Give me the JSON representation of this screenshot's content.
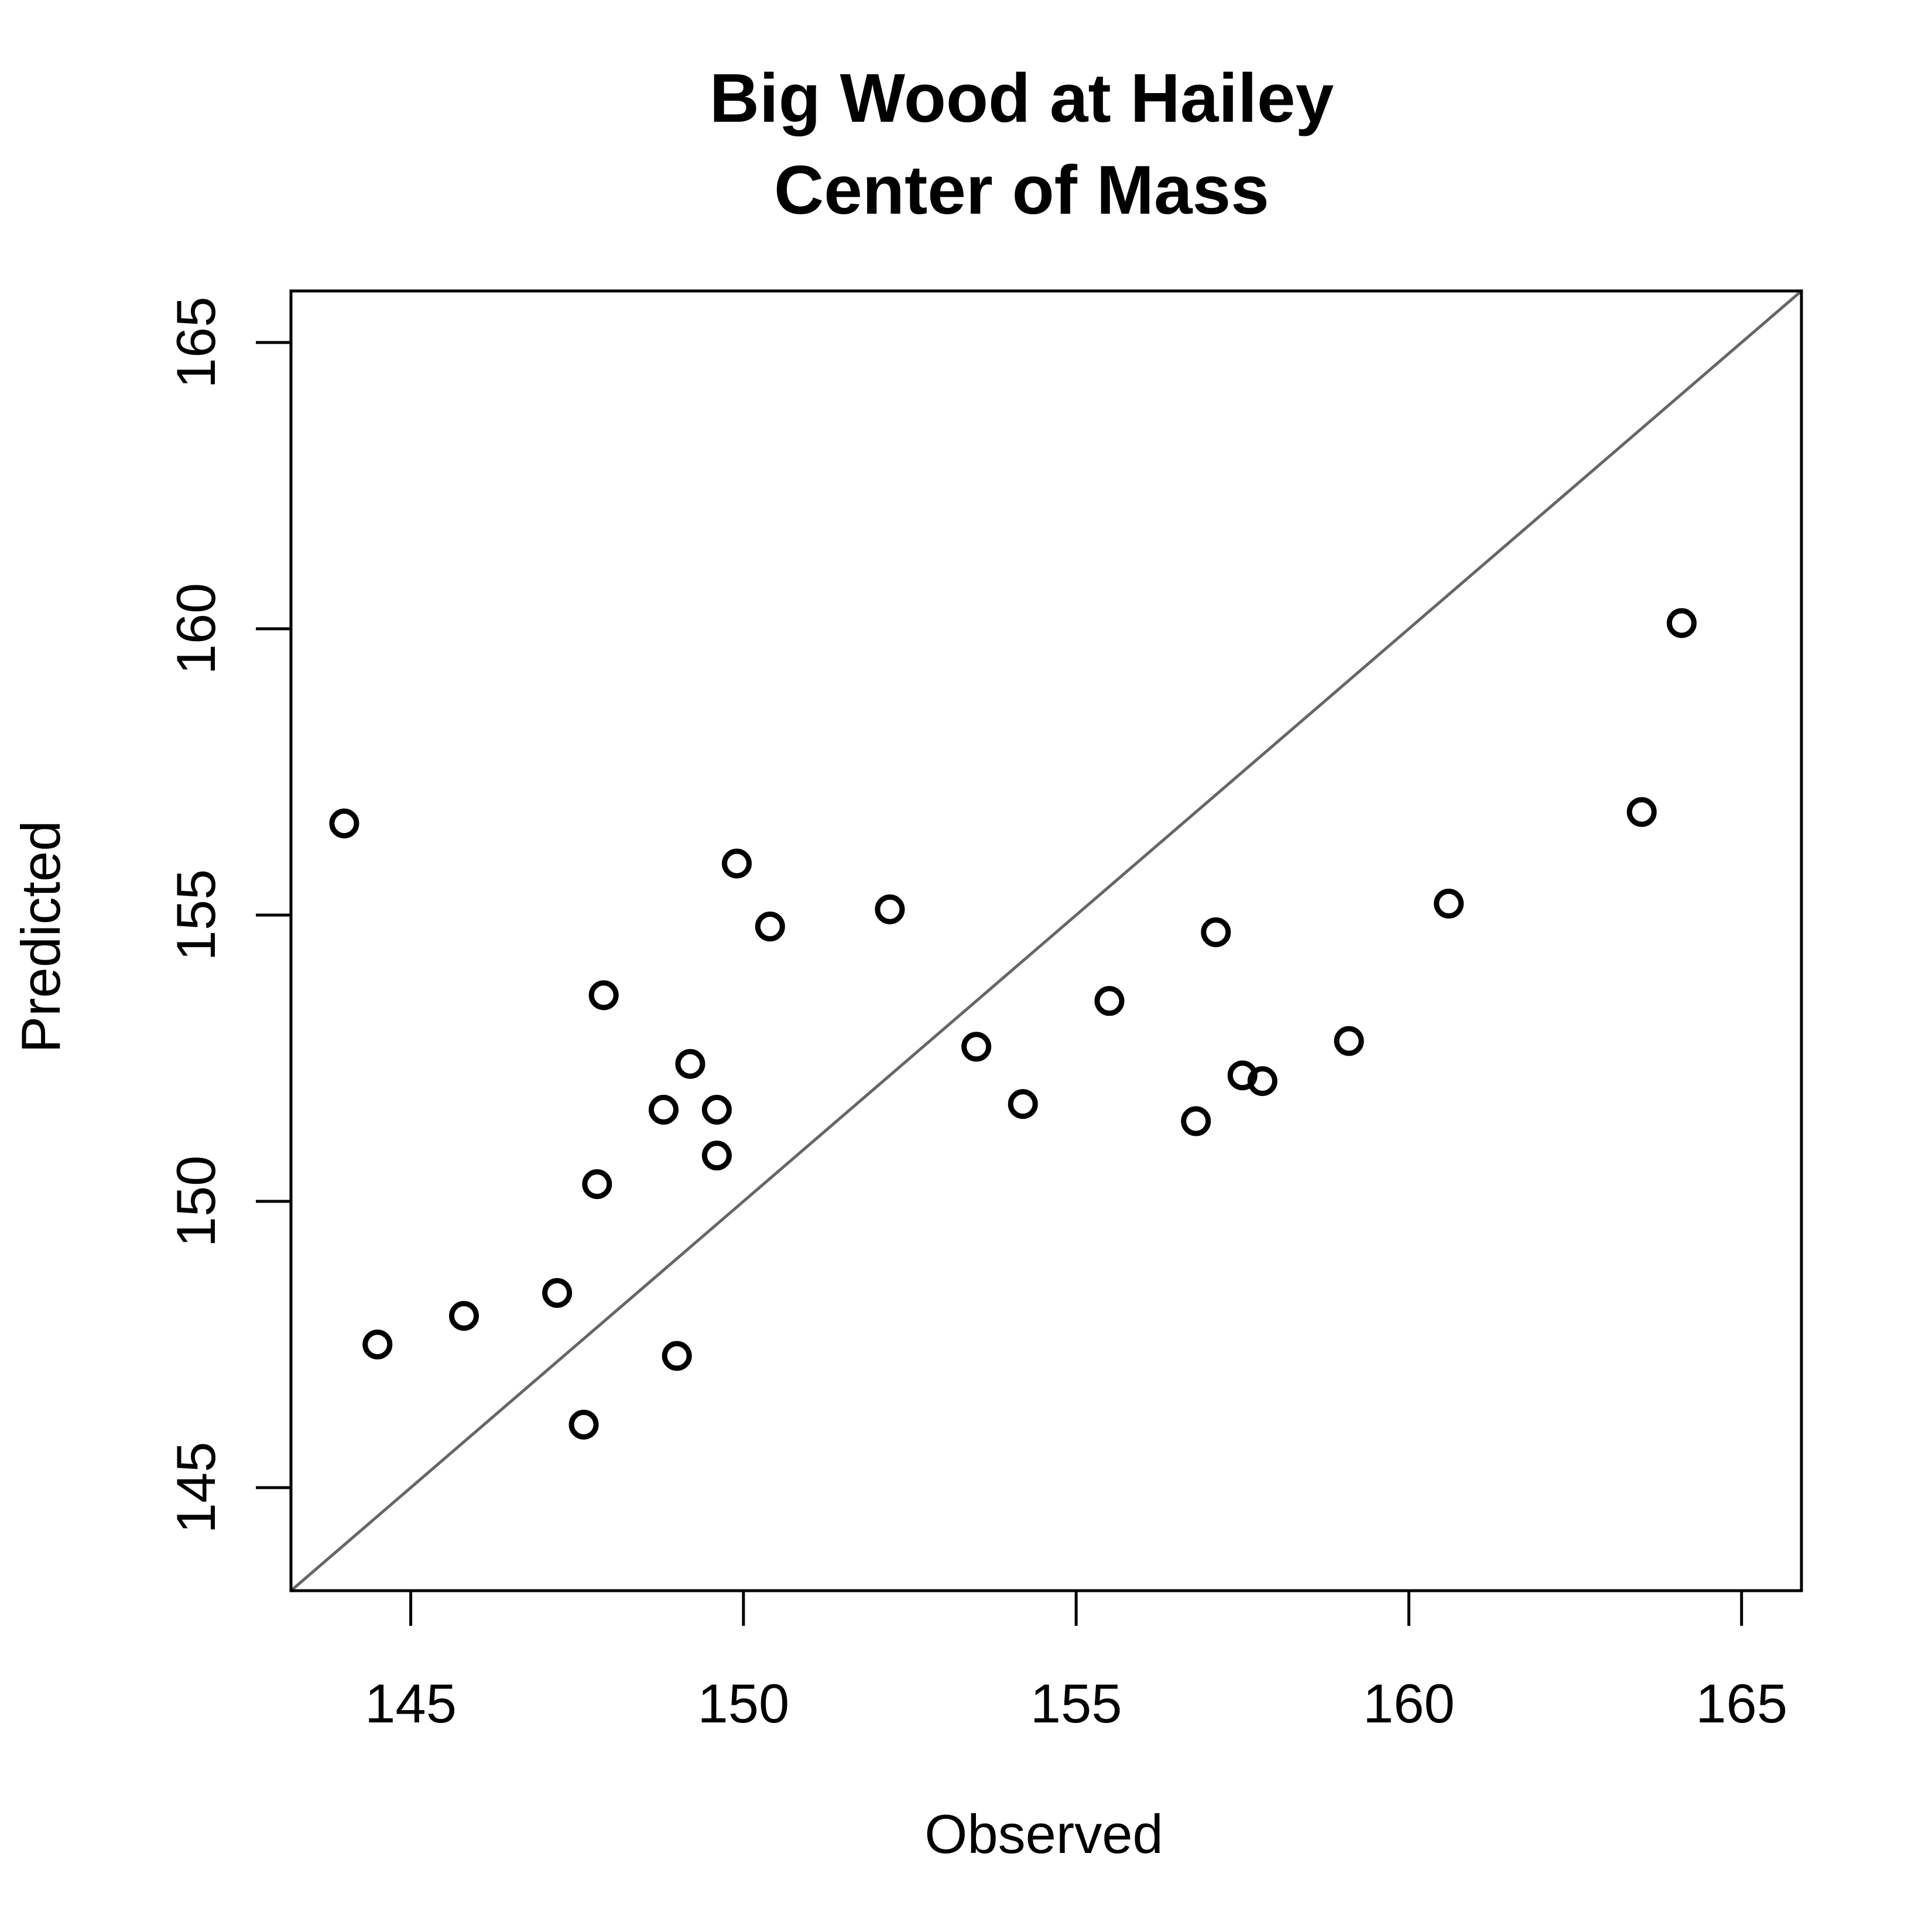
{
  "chart_data": {
    "type": "scatter",
    "title": [
      "Big Wood at Hailey",
      "Center of Mass"
    ],
    "xlabel": "Observed",
    "ylabel": "Predicted",
    "xlim": [
      143.2,
      165.9
    ],
    "ylim": [
      143.2,
      165.9
    ],
    "xticks": [
      145,
      150,
      155,
      160,
      165
    ],
    "yticks": [
      145,
      150,
      155,
      160,
      165
    ],
    "reference_line": {
      "type": "identity",
      "slope": 1,
      "intercept": 0,
      "color": "#666666"
    },
    "grid": false,
    "marker": "open-circle",
    "points": [
      {
        "x": 144.0,
        "y": 156.6
      },
      {
        "x": 144.5,
        "y": 147.5
      },
      {
        "x": 145.8,
        "y": 148.0
      },
      {
        "x": 147.2,
        "y": 148.4
      },
      {
        "x": 147.6,
        "y": 146.1
      },
      {
        "x": 147.8,
        "y": 150.3
      },
      {
        "x": 147.9,
        "y": 153.6
      },
      {
        "x": 148.8,
        "y": 151.6
      },
      {
        "x": 149.0,
        "y": 147.3
      },
      {
        "x": 149.2,
        "y": 152.4
      },
      {
        "x": 149.6,
        "y": 151.6
      },
      {
        "x": 149.6,
        "y": 150.8
      },
      {
        "x": 149.9,
        "y": 155.9
      },
      {
        "x": 150.4,
        "y": 154.8
      },
      {
        "x": 152.2,
        "y": 155.1
      },
      {
        "x": 153.5,
        "y": 152.7
      },
      {
        "x": 154.2,
        "y": 151.7
      },
      {
        "x": 155.5,
        "y": 153.5
      },
      {
        "x": 156.8,
        "y": 151.4
      },
      {
        "x": 157.1,
        "y": 154.7
      },
      {
        "x": 157.5,
        "y": 152.2
      },
      {
        "x": 157.8,
        "y": 152.1
      },
      {
        "x": 159.1,
        "y": 152.8
      },
      {
        "x": 160.6,
        "y": 155.2
      },
      {
        "x": 163.5,
        "y": 156.8
      },
      {
        "x": 164.1,
        "y": 160.1
      }
    ]
  }
}
